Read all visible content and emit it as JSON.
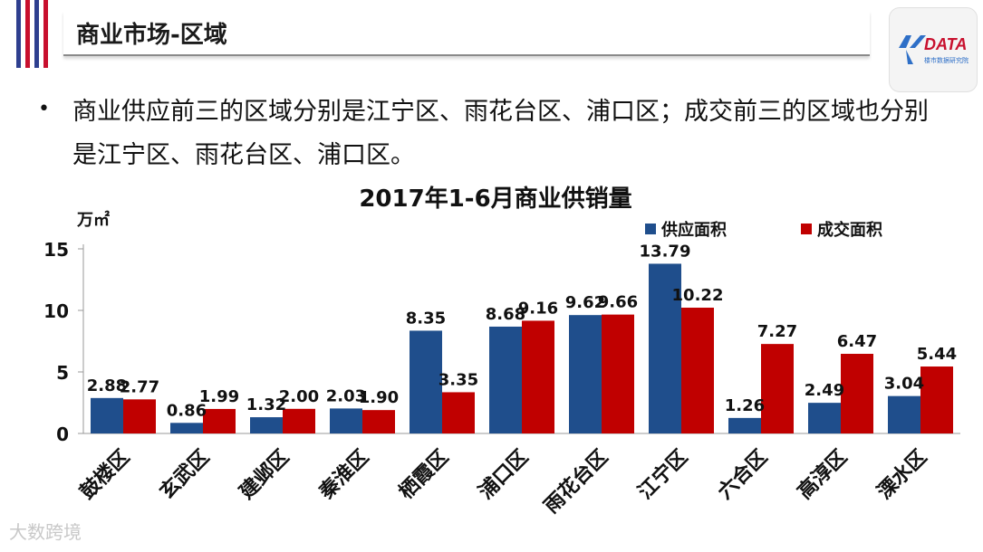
{
  "header": {
    "title": "商业市场-区域",
    "logo_text": "DATA",
    "logo_sub": "楼市数据研究院"
  },
  "bullet": "商业供应前三的区域分别是江宁区、雨花台区、浦口区；成交前三的区域也分别是江宁区、雨花台区、浦口区。",
  "watermark": "大数跨境",
  "colors": {
    "supply": "#1f4e8c",
    "deal": "#c00000"
  },
  "chart_data": {
    "type": "bar",
    "title": "2017年1-6月商业供销量",
    "unit_label": "万㎡",
    "categories": [
      "鼓楼区",
      "玄武区",
      "建邺区",
      "秦淮区",
      "栖霞区",
      "浦口区",
      "雨花台区",
      "江宁区",
      "六合区",
      "高淳区",
      "溧水区"
    ],
    "series": [
      {
        "name": "供应面积",
        "values": [
          2.88,
          0.86,
          1.32,
          2.03,
          8.35,
          8.68,
          9.62,
          13.79,
          1.26,
          2.49,
          3.04
        ]
      },
      {
        "name": "成交面积",
        "values": [
          2.77,
          1.99,
          2.0,
          1.9,
          3.35,
          9.16,
          9.66,
          10.22,
          7.27,
          6.47,
          5.44
        ]
      }
    ],
    "ylim": [
      0,
      15
    ],
    "yticks": [
      0,
      5,
      10,
      15
    ],
    "legend_position": "top-right",
    "grid": false
  }
}
